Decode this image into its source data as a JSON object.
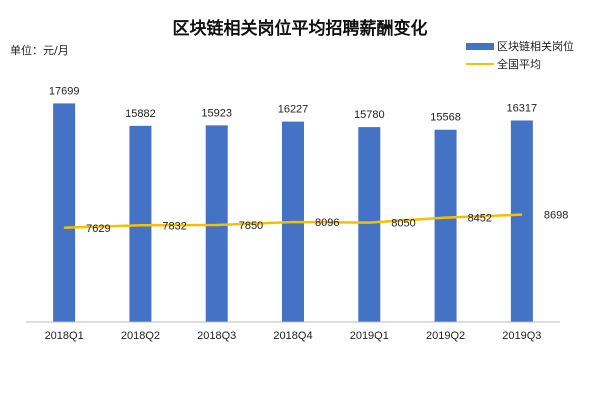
{
  "chart_data": {
    "type": "bar",
    "title": "区块链相关岗位平均招聘薪酬变化",
    "unit_label": "单位：元/月",
    "categories": [
      "2018Q1",
      "2018Q2",
      "2018Q3",
      "2018Q4",
      "2019Q1",
      "2019Q2",
      "2019Q3"
    ],
    "series": [
      {
        "name": "区块链相关岗位",
        "type": "bar",
        "color": "#4472c4",
        "values": [
          17699,
          15882,
          15923,
          16227,
          15780,
          15568,
          16317
        ]
      },
      {
        "name": "全国平均",
        "type": "line",
        "color": "#f5c000",
        "values": [
          7629,
          7832,
          7850,
          8096,
          8050,
          8452,
          8698
        ]
      }
    ],
    "ylim": [
      0,
      20000
    ],
    "grid": false,
    "legend": "top-right"
  }
}
